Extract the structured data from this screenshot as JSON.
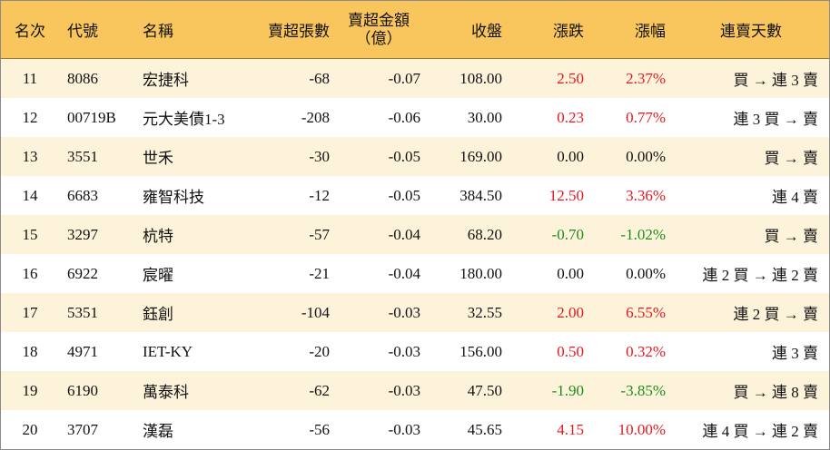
{
  "header": {
    "rank": "名次",
    "code": "代號",
    "name": "名稱",
    "volume": "賣超張數",
    "amount_line1": "賣超金額",
    "amount_line2": "（億）",
    "close": "收盤",
    "change": "漲跌",
    "change_pct": "漲幅",
    "streak": "連賣天數"
  },
  "colors": {
    "header_bg": "#f9c65e",
    "alt_row_bg": "#fdf3da",
    "up": "#e8171f",
    "down": "#1e8c1e"
  },
  "rows": [
    {
      "rank": "11",
      "code": "8086",
      "name": "宏捷科",
      "volume": "-68",
      "amount": "-0.07",
      "close": "108.00",
      "change": "2.50",
      "change_pct": "2.37%",
      "streak": "買 → 連 3 賣",
      "dir": "up"
    },
    {
      "rank": "12",
      "code": "00719B",
      "name": "元大美債1-3",
      "volume": "-208",
      "amount": "-0.06",
      "close": "30.00",
      "change": "0.23",
      "change_pct": "0.77%",
      "streak": "連 3 買 → 賣",
      "dir": "up"
    },
    {
      "rank": "13",
      "code": "3551",
      "name": "世禾",
      "volume": "-30",
      "amount": "-0.05",
      "close": "169.00",
      "change": "0.00",
      "change_pct": "0.00%",
      "streak": "買 → 賣",
      "dir": "flat"
    },
    {
      "rank": "14",
      "code": "6683",
      "name": "雍智科技",
      "volume": "-12",
      "amount": "-0.05",
      "close": "384.50",
      "change": "12.50",
      "change_pct": "3.36%",
      "streak": "連 4 賣",
      "dir": "up"
    },
    {
      "rank": "15",
      "code": "3297",
      "name": "杭特",
      "volume": "-57",
      "amount": "-0.04",
      "close": "68.20",
      "change": "-0.70",
      "change_pct": "-1.02%",
      "streak": "買 → 賣",
      "dir": "down"
    },
    {
      "rank": "16",
      "code": "6922",
      "name": "宸曜",
      "volume": "-21",
      "amount": "-0.04",
      "close": "180.00",
      "change": "0.00",
      "change_pct": "0.00%",
      "streak": "連 2 買 → 連 2 賣",
      "dir": "flat"
    },
    {
      "rank": "17",
      "code": "5351",
      "name": "鈺創",
      "volume": "-104",
      "amount": "-0.03",
      "close": "32.55",
      "change": "2.00",
      "change_pct": "6.55%",
      "streak": "連 2 買 → 賣",
      "dir": "up"
    },
    {
      "rank": "18",
      "code": "4971",
      "name": "IET-KY",
      "volume": "-20",
      "amount": "-0.03",
      "close": "156.00",
      "change": "0.50",
      "change_pct": "0.32%",
      "streak": "連 3 賣",
      "dir": "up"
    },
    {
      "rank": "19",
      "code": "6190",
      "name": "萬泰科",
      "volume": "-62",
      "amount": "-0.03",
      "close": "47.50",
      "change": "-1.90",
      "change_pct": "-3.85%",
      "streak": "買 → 連 8 賣",
      "dir": "down"
    },
    {
      "rank": "20",
      "code": "3707",
      "name": "漢磊",
      "volume": "-56",
      "amount": "-0.03",
      "close": "45.65",
      "change": "4.15",
      "change_pct": "10.00%",
      "streak": "連 4 買 → 連 2 賣",
      "dir": "up"
    }
  ]
}
